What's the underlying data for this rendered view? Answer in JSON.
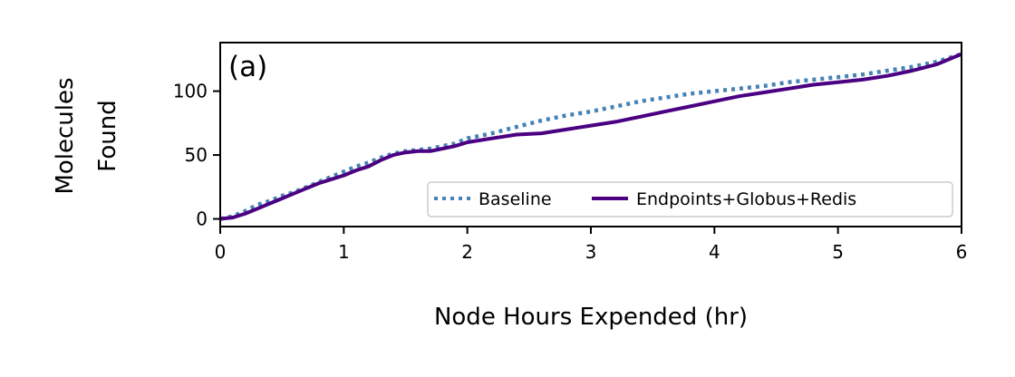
{
  "chart_data": {
    "type": "line",
    "panel_label": "(a)",
    "xlabel": "Node Hours Expended (hr)",
    "ylabel_lines": [
      "Molecules",
      "Found"
    ],
    "xlim": [
      0,
      6
    ],
    "ylim": [
      -6,
      138
    ],
    "xticks": [
      0,
      1,
      2,
      3,
      4,
      5,
      6
    ],
    "yticks": [
      0,
      50,
      100
    ],
    "grid": false,
    "legend_position": "lower right",
    "series": [
      {
        "name": "Baseline",
        "color": "#4682b4",
        "style": "dotted",
        "x": [
          0,
          0.1,
          0.2,
          0.3,
          0.4,
          0.5,
          0.6,
          0.7,
          0.8,
          0.9,
          1.0,
          1.1,
          1.2,
          1.3,
          1.4,
          1.5,
          1.6,
          1.7,
          1.8,
          1.9,
          2.0,
          2.2,
          2.4,
          2.6,
          2.8,
          3.0,
          3.2,
          3.4,
          3.6,
          3.8,
          4.0,
          4.2,
          4.4,
          4.6,
          4.8,
          5.0,
          5.2,
          5.4,
          5.6,
          5.8,
          6.0
        ],
        "y": [
          0,
          2,
          6,
          11,
          14,
          18,
          21,
          25,
          29,
          33,
          37,
          41,
          44,
          48,
          51,
          53,
          54,
          55,
          57,
          59,
          63,
          67,
          72,
          77,
          81,
          84,
          88,
          92,
          95,
          98,
          100,
          102,
          104,
          107,
          109,
          111,
          113,
          116,
          119,
          123,
          129
        ]
      },
      {
        "name": "Endpoints+Globus+Redis",
        "color": "#4b0082",
        "style": "solid",
        "x": [
          0,
          0.1,
          0.2,
          0.3,
          0.4,
          0.5,
          0.6,
          0.7,
          0.8,
          0.9,
          1.0,
          1.1,
          1.2,
          1.3,
          1.4,
          1.5,
          1.6,
          1.7,
          1.8,
          1.9,
          2.0,
          2.2,
          2.4,
          2.6,
          2.8,
          3.0,
          3.2,
          3.4,
          3.6,
          3.8,
          4.0,
          4.2,
          4.4,
          4.6,
          4.8,
          5.0,
          5.2,
          5.4,
          5.6,
          5.8,
          6.0
        ],
        "y": [
          0,
          1,
          4,
          8,
          12,
          16,
          20,
          24,
          28,
          31,
          34,
          38,
          41,
          46,
          50,
          52,
          53,
          53,
          55,
          57,
          60,
          63,
          66,
          67,
          70,
          73,
          76,
          80,
          84,
          88,
          92,
          96,
          99,
          102,
          105,
          107,
          109,
          112,
          116,
          121,
          129
        ]
      }
    ]
  }
}
